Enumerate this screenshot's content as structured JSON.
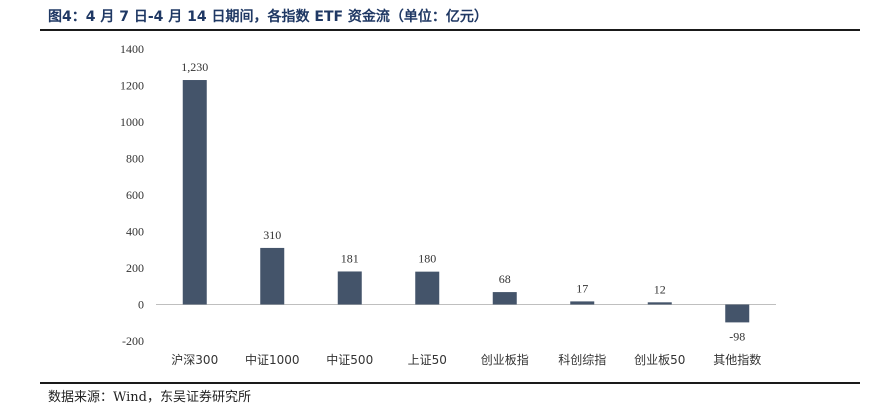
{
  "title": "图4：4 月 7 日-4 月 14 日期间，各指数 ETF 资金流（单位：亿元）",
  "source": "数据来源：Wind，东吴证券研究所",
  "colors": {
    "bar": "#44546a",
    "rule": "#1a1a1a",
    "title": "#1f3864"
  },
  "chart_data": {
    "type": "bar",
    "categories": [
      "沪深300",
      "中证1000",
      "中证500",
      "上证50",
      "创业板指",
      "科创综指",
      "创业板50",
      "其他指数"
    ],
    "values": [
      1230,
      310,
      181,
      180,
      68,
      17,
      12,
      -98
    ],
    "data_labels": [
      "1,230",
      "310",
      "181",
      "180",
      "68",
      "17",
      "12",
      "-98"
    ],
    "yticks": [
      -200,
      0,
      200,
      400,
      600,
      800,
      1000,
      1200,
      1400
    ],
    "ylim": [
      -200,
      1400
    ],
    "grid": false,
    "legend": "none"
  }
}
